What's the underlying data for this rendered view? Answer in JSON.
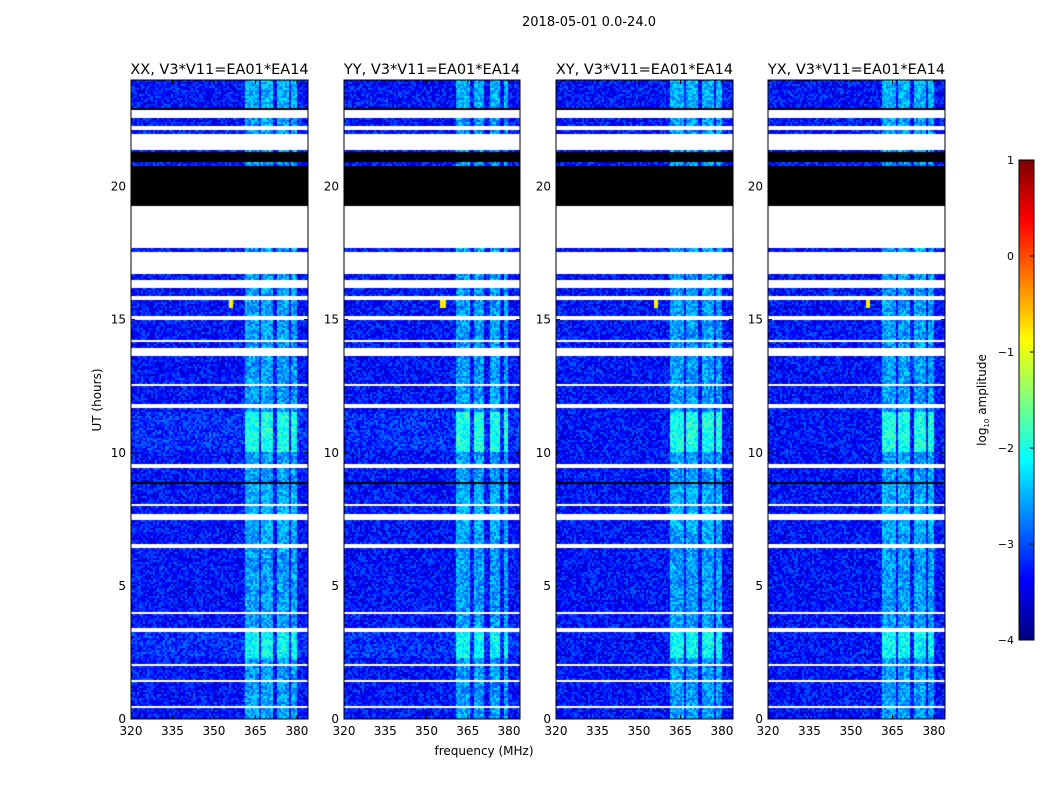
{
  "chart_data": {
    "type": "heatmap",
    "title": "2018-05-01 0.0-24.0",
    "xlabel": "frequency (MHz)",
    "ylabel": "UT (hours)",
    "xlim": [
      320,
      384
    ],
    "ylim": [
      0,
      24
    ],
    "xticks": [
      320,
      335,
      350,
      365,
      380
    ],
    "yticks": [
      0,
      5,
      10,
      15,
      20
    ],
    "panels": [
      {
        "title": "XX, V3*V11=EA01*EA14"
      },
      {
        "title": "YY, V3*V11=EA01*EA14"
      },
      {
        "title": "XY, V3*V11=EA01*EA14"
      },
      {
        "title": "YX, V3*V11=EA01*EA14"
      }
    ],
    "colorbar": {
      "label_prefix": "log",
      "label_sub": "10",
      "label_suffix": "amplitude",
      "range": [
        -4,
        1
      ],
      "ticks": [
        1,
        0,
        -1,
        -2,
        -3,
        -4
      ],
      "tick_labels": [
        "1",
        "0",
        "−1",
        "−2",
        "−3",
        "−4"
      ],
      "colormap": "jet"
    },
    "background_level": -3.3,
    "bright_channels_mhz": [
      [
        361,
        366
      ],
      [
        367,
        371
      ],
      [
        373,
        377
      ],
      [
        378,
        380
      ]
    ],
    "bright_channel_level": -2.6,
    "bright_time_ranges_hours": [
      [
        10.0,
        11.5,
        -2.0
      ],
      [
        2.3,
        3.3,
        -2.1
      ],
      [
        7.0,
        8.8,
        -2.5
      ],
      [
        22.9,
        24,
        -2.5
      ]
    ],
    "rfi_spike": {
      "freq_mhz": 356,
      "time_hours": 15.6,
      "level": -0.8
    },
    "flagged_white_hours": [
      [
        0.4,
        0.5
      ],
      [
        1.4,
        1.5
      ],
      [
        2.0,
        2.05
      ],
      [
        3.25,
        3.4
      ],
      [
        3.95,
        4.05
      ],
      [
        4.45,
        4.5
      ],
      [
        6.4,
        6.6
      ],
      [
        7.5,
        7.7
      ],
      [
        8.0,
        8.05
      ],
      [
        8.35,
        8.4
      ],
      [
        9.4,
        9.6
      ],
      [
        11.7,
        11.8
      ],
      [
        12.5,
        12.6
      ],
      [
        13.6,
        13.9
      ],
      [
        14.15,
        14.25
      ],
      [
        15.0,
        15.1
      ],
      [
        15.75,
        15.85
      ],
      [
        16.2,
        16.5
      ],
      [
        16.75,
        17.55
      ],
      [
        17.7,
        19.25
      ],
      [
        21.35,
        21.95
      ],
      [
        22.15,
        22.3
      ],
      [
        22.55,
        22.85
      ]
    ],
    "flagged_black_hours": [
      [
        8.85,
        8.9
      ],
      [
        7.75,
        7.8
      ],
      [
        17.6,
        17.65
      ],
      [
        19.25,
        20.75
      ],
      [
        20.95,
        21.3
      ],
      [
        22.9,
        22.95
      ]
    ]
  }
}
